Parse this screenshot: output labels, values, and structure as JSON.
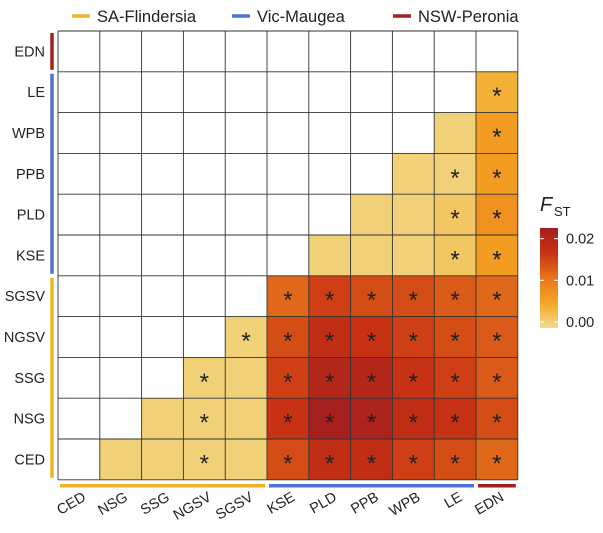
{
  "chart_data": {
    "type": "heatmap",
    "legend": {
      "title_main": "F",
      "title_sub": "ST",
      "ticks": [
        "0.00",
        "0.01",
        "0.02"
      ],
      "tick_values": [
        0.0,
        0.01,
        0.02
      ],
      "colors": [
        "#f0dc8c",
        "#f5a623",
        "#e6751c",
        "#c83214",
        "#a51f1f"
      ]
    },
    "groups": [
      {
        "name": "SA-Flindersia",
        "color": "#f0b429",
        "members": [
          "CED",
          "NSG",
          "SSG",
          "NGSV",
          "SGSV"
        ]
      },
      {
        "name": "Vic-Maugea",
        "color": "#4f6fd9",
        "members": [
          "KSE",
          "PLD",
          "PPB",
          "WPB",
          "LE"
        ]
      },
      {
        "name": "NSW-Peronia",
        "color": "#a51f1f",
        "members": [
          "EDN"
        ]
      }
    ],
    "x_labels": [
      "CED",
      "NSG",
      "SSG",
      "NGSV",
      "SGSV",
      "KSE",
      "PLD",
      "PPB",
      "WPB",
      "LE",
      "EDN"
    ],
    "y_labels": [
      "EDN",
      "LE",
      "WPB",
      "PPB",
      "PLD",
      "KSE",
      "SGSV",
      "NGSV",
      "SSG",
      "NSG",
      "CED"
    ],
    "significance_mark": "*",
    "cells": [
      [
        "LE",
        "EDN",
        0.004,
        true
      ],
      [
        "WPB",
        "LE",
        0.001,
        false
      ],
      [
        "WPB",
        "EDN",
        0.006,
        true
      ],
      [
        "PPB",
        "WPB",
        0.001,
        false
      ],
      [
        "PPB",
        "LE",
        0.001,
        true
      ],
      [
        "PPB",
        "EDN",
        0.006,
        true
      ],
      [
        "PLD",
        "PPB",
        0.001,
        false
      ],
      [
        "PLD",
        "WPB",
        0.001,
        false
      ],
      [
        "PLD",
        "LE",
        0.002,
        true
      ],
      [
        "PLD",
        "EDN",
        0.007,
        true
      ],
      [
        "KSE",
        "PLD",
        0.001,
        false
      ],
      [
        "KSE",
        "PPB",
        0.001,
        false
      ],
      [
        "KSE",
        "WPB",
        0.001,
        false
      ],
      [
        "KSE",
        "LE",
        0.002,
        true
      ],
      [
        "KSE",
        "EDN",
        0.006,
        true
      ],
      [
        "SGSV",
        "KSE",
        0.011,
        true
      ],
      [
        "SGSV",
        "PLD",
        0.014,
        true
      ],
      [
        "SGSV",
        "PPB",
        0.013,
        true
      ],
      [
        "SGSV",
        "WPB",
        0.013,
        true
      ],
      [
        "SGSV",
        "LE",
        0.012,
        true
      ],
      [
        "SGSV",
        "EDN",
        0.011,
        true
      ],
      [
        "NGSV",
        "SGSV",
        0.001,
        true
      ],
      [
        "NGSV",
        "KSE",
        0.013,
        true
      ],
      [
        "NGSV",
        "PLD",
        0.016,
        true
      ],
      [
        "NGSV",
        "PPB",
        0.015,
        true
      ],
      [
        "NGSV",
        "WPB",
        0.014,
        true
      ],
      [
        "NGSV",
        "LE",
        0.013,
        true
      ],
      [
        "NGSV",
        "EDN",
        0.012,
        true
      ],
      [
        "SSG",
        "NGSV",
        0.001,
        true
      ],
      [
        "SSG",
        "SGSV",
        0.001,
        false
      ],
      [
        "SSG",
        "KSE",
        0.014,
        true
      ],
      [
        "SSG",
        "PLD",
        0.018,
        true
      ],
      [
        "SSG",
        "PPB",
        0.018,
        true
      ],
      [
        "SSG",
        "WPB",
        0.015,
        true
      ],
      [
        "SSG",
        "LE",
        0.014,
        true
      ],
      [
        "SSG",
        "EDN",
        0.012,
        true
      ],
      [
        "NSG",
        "SSG",
        0.001,
        false
      ],
      [
        "NSG",
        "NGSV",
        0.001,
        true
      ],
      [
        "NSG",
        "SGSV",
        0.001,
        false
      ],
      [
        "NSG",
        "KSE",
        0.015,
        true
      ],
      [
        "NSG",
        "PLD",
        0.02,
        true
      ],
      [
        "NSG",
        "PPB",
        0.019,
        true
      ],
      [
        "NSG",
        "WPB",
        0.016,
        true
      ],
      [
        "NSG",
        "LE",
        0.015,
        true
      ],
      [
        "NSG",
        "EDN",
        0.013,
        true
      ],
      [
        "CED",
        "NSG",
        0.001,
        false
      ],
      [
        "CED",
        "SSG",
        0.001,
        false
      ],
      [
        "CED",
        "NGSV",
        0.001,
        true
      ],
      [
        "CED",
        "SGSV",
        0.001,
        false
      ],
      [
        "CED",
        "KSE",
        0.013,
        true
      ],
      [
        "CED",
        "PLD",
        0.016,
        true
      ],
      [
        "CED",
        "PPB",
        0.016,
        true
      ],
      [
        "CED",
        "WPB",
        0.014,
        true
      ],
      [
        "CED",
        "LE",
        0.013,
        true
      ],
      [
        "CED",
        "EDN",
        0.011,
        true
      ]
    ]
  }
}
